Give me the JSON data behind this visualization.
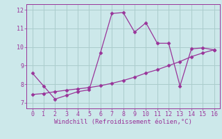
{
  "x_line1": [
    0,
    1,
    2,
    3,
    4,
    5,
    6,
    7,
    8,
    9,
    10,
    11,
    12,
    13,
    14,
    15,
    16
  ],
  "y_line1": [
    8.6,
    7.9,
    7.2,
    7.4,
    7.6,
    7.7,
    9.7,
    11.8,
    11.85,
    10.8,
    11.3,
    10.2,
    10.2,
    7.9,
    9.9,
    9.95,
    9.85
  ],
  "x_line2": [
    0,
    1,
    2,
    3,
    4,
    5,
    6,
    7,
    8,
    9,
    10,
    11,
    12,
    13,
    14,
    15,
    16
  ],
  "y_line2": [
    7.45,
    7.5,
    7.6,
    7.68,
    7.75,
    7.82,
    7.92,
    8.05,
    8.2,
    8.38,
    8.6,
    8.78,
    9.0,
    9.22,
    9.48,
    9.68,
    9.85
  ],
  "line_color": "#993399",
  "bg_color": "#cce8ea",
  "grid_color": "#aacccc",
  "xlabel": "Windchill (Refroidissement éolien,°C)",
  "xlim": [
    -0.5,
    16.5
  ],
  "ylim": [
    6.7,
    12.3
  ],
  "xticks": [
    0,
    1,
    2,
    3,
    4,
    5,
    6,
    7,
    8,
    9,
    10,
    11,
    12,
    13,
    14,
    15,
    16
  ],
  "yticks": [
    7,
    8,
    9,
    10,
    11,
    12
  ],
  "axis_fontsize": 6.5,
  "tick_fontsize": 6.0,
  "marker_size": 2.5,
  "line_width": 0.9
}
